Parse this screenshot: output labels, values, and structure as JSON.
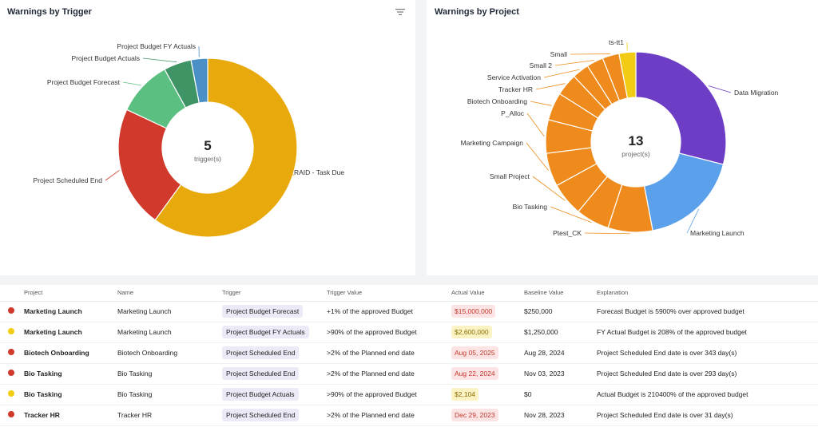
{
  "colors": {
    "orange_gold": "#E8A90C",
    "red": "#D0392B",
    "green": "#5BBF82",
    "dark_green": "#3E9465",
    "blue": "#4A8FC6",
    "purple": "#6D3DC6",
    "light_blue": "#5AA0EA",
    "orange": "#EE8B1C",
    "yellow": "#F2CC14"
  },
  "trigger_panel": {
    "title": "Warnings by Trigger",
    "filter_icon": "filter-icon",
    "center_value": "5",
    "center_label": "trigger(s)"
  },
  "project_panel": {
    "title": "Warnings by Project",
    "center_value": "13",
    "center_label": "project(s)"
  },
  "chart_data": [
    {
      "type": "pie",
      "title": "Warnings by Trigger",
      "categories": [
        "RAID - Task Due",
        "Project Scheduled End",
        "Project Budget Forecast",
        "Project Budget Actuals",
        "Project Budget FY Actuals"
      ],
      "values": [
        60,
        22,
        10,
        5,
        3
      ]
    },
    {
      "type": "pie",
      "title": "Warnings by Project",
      "categories": [
        "Data Migration",
        "Marketing Launch",
        "Ptest_CK",
        "Bio Tasking",
        "Small Project",
        "Marketing Campaign",
        "P_Alloc",
        "Biotech Onboarding",
        "Tracker HR",
        "Service Activation",
        "Small 2",
        "Small",
        "ts-tt1"
      ],
      "values": [
        29,
        18,
        8,
        6,
        6,
        6,
        6,
        5,
        4,
        3,
        3,
        3,
        3
      ]
    }
  ],
  "table": {
    "headers": [
      "Project",
      "Name",
      "Trigger",
      "Trigger Value",
      "Actual Value",
      "Baseline Value",
      "Explanation"
    ],
    "rows": [
      {
        "status": "red",
        "project": "Marketing Launch",
        "name": "Marketing Launch",
        "trigger": "Project Budget Forecast",
        "trigger_value": "+1% of the approved Budget",
        "actual_value": "$15,000,000",
        "actual_style": "red",
        "baseline_value": "$250,000",
        "explanation": "Forecast Budget is 5900% over approved budget"
      },
      {
        "status": "yellow",
        "project": "Marketing Launch",
        "name": "Marketing Launch",
        "trigger": "Project Budget FY Actuals",
        "trigger_value": ">90% of the approved Budget",
        "actual_value": "$2,600,000",
        "actual_style": "yellow",
        "baseline_value": "$1,250,000",
        "explanation": "FY Actual Budget is 208% of the approved budget"
      },
      {
        "status": "red",
        "project": "Biotech Onboarding",
        "name": "Biotech Onboarding",
        "trigger": "Project Scheduled End",
        "trigger_value": ">2% of the Planned end date",
        "actual_value": "Aug 05, 2025",
        "actual_style": "red",
        "baseline_value": "Aug 28, 2024",
        "explanation": "Project Scheduled End date is over 343 day(s)"
      },
      {
        "status": "red",
        "project": "Bio Tasking",
        "name": "Bio Tasking",
        "trigger": "Project Scheduled End",
        "trigger_value": ">2% of the Planned end date",
        "actual_value": "Aug 22, 2024",
        "actual_style": "red",
        "baseline_value": "Nov 03, 2023",
        "explanation": "Project Scheduled End date is over 293 day(s)"
      },
      {
        "status": "yellow",
        "project": "Bio Tasking",
        "name": "Bio Tasking",
        "trigger": "Project Budget Actuals",
        "trigger_value": ">90% of the approved Budget",
        "actual_value": "$2,104",
        "actual_style": "yellow",
        "baseline_value": "$0",
        "explanation": "Actual Budget is 210400% of the approved budget"
      },
      {
        "status": "red",
        "project": "Tracker HR",
        "name": "Tracker HR",
        "trigger": "Project Scheduled End",
        "trigger_value": ">2% of the Planned end date",
        "actual_value": "Dec 29, 2023",
        "actual_style": "red",
        "baseline_value": "Nov 28, 2023",
        "explanation": "Project Scheduled End date is over 31 day(s)"
      }
    ]
  }
}
